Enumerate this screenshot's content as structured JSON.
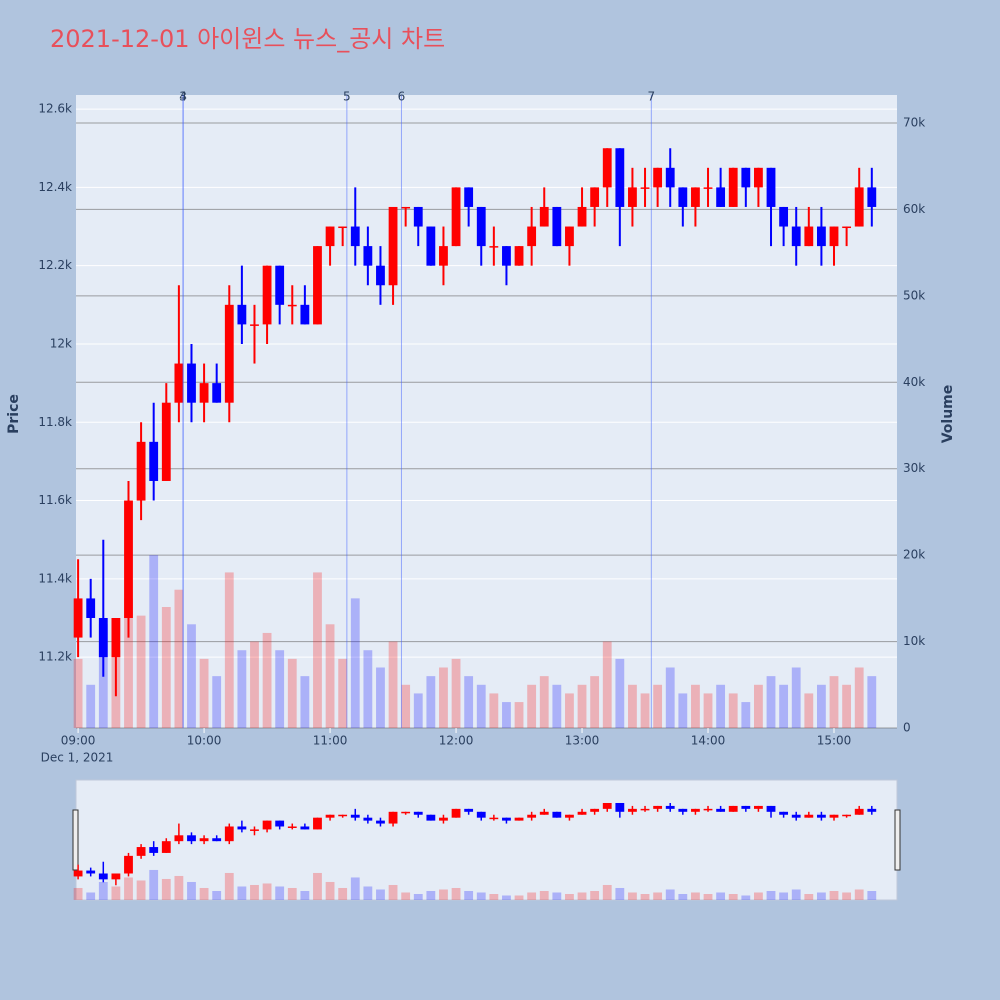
{
  "chart_data": {
    "type": "candlestick",
    "title": "2021-12-01 아이윈스 뉴스_공시 차트",
    "ylabel": "Price",
    "y2label": "Volume",
    "x_date_label": "Dec 1, 2021",
    "increasing_color": "#ff0000",
    "decreasing_color": "#0000ff",
    "xlim": [
      "08:59",
      "15:30"
    ],
    "xticks": [
      "09:00",
      "10:00",
      "11:00",
      "12:00",
      "13:00",
      "14:00",
      "15:00"
    ],
    "ylim": [
      11019,
      12636
    ],
    "yticks": [
      {
        "value": 11200,
        "label": "11.2k"
      },
      {
        "value": 11400,
        "label": "11.4k"
      },
      {
        "value": 11600,
        "label": "11.6k"
      },
      {
        "value": 11800,
        "label": "11.8k"
      },
      {
        "value": 12000,
        "label": "12k"
      },
      {
        "value": 12200,
        "label": "12.2k"
      },
      {
        "value": 12400,
        "label": "12.4k"
      },
      {
        "value": 12600,
        "label": "12.6k"
      }
    ],
    "y2lim": [
      0,
      73240
    ],
    "y2ticks": [
      0,
      {
        "value": 10000,
        "label": "10k"
      },
      {
        "value": 20000,
        "label": "20k"
      },
      {
        "value": 30000,
        "label": "30k"
      },
      {
        "value": 40000,
        "label": "40k"
      },
      {
        "value": 50000,
        "label": "50k"
      },
      {
        "value": 60000,
        "label": "60k"
      },
      {
        "value": 70000,
        "label": "70k"
      }
    ],
    "annotations": [
      {
        "x": "09:50",
        "label": "3"
      },
      {
        "x": "09:50",
        "label": "4"
      },
      {
        "x": "11:08",
        "label": "5"
      },
      {
        "x": "11:34",
        "label": "6"
      },
      {
        "x": "13:33",
        "label": "7"
      }
    ],
    "x": [
      "09:00",
      "09:06",
      "09:12",
      "09:18",
      "09:24",
      "09:30",
      "09:36",
      "09:42",
      "09:48",
      "09:54",
      "10:00",
      "10:06",
      "10:12",
      "10:18",
      "10:24",
      "10:30",
      "10:36",
      "10:42",
      "10:48",
      "10:54",
      "11:00",
      "11:06",
      "11:12",
      "11:18",
      "11:24",
      "11:30",
      "11:36",
      "11:42",
      "11:48",
      "11:54",
      "12:00",
      "12:06",
      "12:12",
      "12:18",
      "12:24",
      "12:30",
      "12:36",
      "12:42",
      "12:48",
      "12:54",
      "13:00",
      "13:06",
      "13:12",
      "13:18",
      "13:24",
      "13:30",
      "13:36",
      "13:42",
      "13:48",
      "13:54",
      "14:00",
      "14:06",
      "14:12",
      "14:18",
      "14:24",
      "14:30",
      "14:36",
      "14:42",
      "14:48",
      "14:54",
      "15:00",
      "15:06",
      "15:12",
      "15:18"
    ],
    "open": [
      11250,
      11350,
      11300,
      11200,
      11300,
      11600,
      11750,
      11650,
      11850,
      11950,
      11850,
      11900,
      11850,
      12100,
      12050,
      12050,
      12200,
      12100,
      12100,
      12050,
      12250,
      12300,
      12300,
      12250,
      12200,
      12150,
      12350,
      12350,
      12300,
      12200,
      12250,
      12400,
      12350,
      12250,
      12250,
      12200,
      12250,
      12300,
      12350,
      12250,
      12300,
      12350,
      12400,
      12500,
      12350,
      12400,
      12400,
      12450,
      12400,
      12350,
      12400,
      12400,
      12350,
      12450,
      12400,
      12450,
      12350,
      12300,
      12250,
      12300,
      12250,
      12300,
      12300,
      12400
    ],
    "high": [
      11450,
      11400,
      11500,
      11300,
      11650,
      11800,
      11850,
      11900,
      12150,
      12000,
      11950,
      11950,
      12150,
      12200,
      12100,
      12200,
      12200,
      12150,
      12150,
      12250,
      12300,
      12300,
      12400,
      12300,
      12250,
      12350,
      12350,
      12350,
      12300,
      12300,
      12400,
      12400,
      12350,
      12300,
      12250,
      12250,
      12350,
      12400,
      12350,
      12300,
      12400,
      12400,
      12500,
      12500,
      12450,
      12450,
      12450,
      12500,
      12400,
      12400,
      12450,
      12450,
      12450,
      12450,
      12450,
      12450,
      12350,
      12350,
      12350,
      12350,
      12300,
      12300,
      12450,
      12450
    ],
    "low": [
      11200,
      11250,
      11150,
      11100,
      11250,
      11550,
      11600,
      11650,
      11800,
      11800,
      11800,
      11850,
      11800,
      12000,
      11950,
      12000,
      12050,
      12050,
      12050,
      12050,
      12200,
      12250,
      12200,
      12150,
      12100,
      12100,
      12300,
      12250,
      12200,
      12150,
      12250,
      12300,
      12200,
      12200,
      12150,
      12200,
      12200,
      12300,
      12250,
      12200,
      12300,
      12300,
      12350,
      12250,
      12300,
      12350,
      12350,
      12350,
      12300,
      12300,
      12350,
      12350,
      12350,
      12350,
      12350,
      12250,
      12250,
      12200,
      12250,
      12200,
      12200,
      12250,
      12300,
      12300
    ],
    "close": [
      11350,
      11300,
      11200,
      11300,
      11600,
      11750,
      11650,
      11850,
      11950,
      11850,
      11900,
      11850,
      12100,
      12050,
      12050,
      12200,
      12100,
      12100,
      12050,
      12250,
      12300,
      12300,
      12250,
      12200,
      12150,
      12350,
      12350,
      12300,
      12200,
      12250,
      12400,
      12350,
      12250,
      12250,
      12200,
      12250,
      12300,
      12350,
      12250,
      12300,
      12350,
      12400,
      12500,
      12350,
      12400,
      12400,
      12450,
      12400,
      12350,
      12400,
      12400,
      12350,
      12450,
      12400,
      12450,
      12350,
      12300,
      12250,
      12300,
      12250,
      12300,
      12300,
      12400,
      12350
    ],
    "volume": [
      8000,
      5000,
      12000,
      9000,
      15000,
      13000,
      20000,
      14000,
      16000,
      12000,
      8000,
      6000,
      18000,
      9000,
      10000,
      11000,
      9000,
      8000,
      6000,
      18000,
      12000,
      8000,
      15000,
      9000,
      7000,
      10000,
      5000,
      4000,
      6000,
      7000,
      8000,
      6000,
      5000,
      4000,
      3000,
      3000,
      5000,
      6000,
      5000,
      4000,
      5000,
      6000,
      10000,
      8000,
      5000,
      4000,
      5000,
      7000,
      4000,
      5000,
      4000,
      5000,
      4000,
      3000,
      5000,
      6000,
      5000,
      7000,
      4000,
      5000,
      6000,
      5000,
      7000,
      6000
    ]
  }
}
